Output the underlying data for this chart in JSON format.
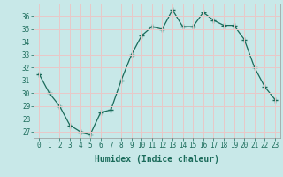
{
  "x": [
    0,
    1,
    2,
    3,
    4,
    5,
    6,
    7,
    8,
    9,
    10,
    11,
    12,
    13,
    14,
    15,
    16,
    17,
    18,
    19,
    20,
    21,
    22,
    23
  ],
  "y": [
    31.5,
    30.0,
    29.0,
    27.5,
    27.0,
    26.8,
    28.5,
    28.7,
    31.0,
    33.0,
    34.5,
    35.2,
    35.0,
    36.5,
    35.2,
    35.2,
    36.3,
    35.7,
    35.3,
    35.3,
    34.2,
    32.0,
    30.5,
    29.5
  ],
  "line_color": "#1a6b5a",
  "marker": "+",
  "marker_size": 4,
  "marker_lw": 1.0,
  "bg_color": "#c8e8e8",
  "grid_color": "#e8c8c8",
  "xlabel": "Humidex (Indice chaleur)",
  "xlim": [
    -0.5,
    23.5
  ],
  "ylim": [
    26.5,
    37.0
  ],
  "yticks": [
    27,
    28,
    29,
    30,
    31,
    32,
    33,
    34,
    35,
    36
  ],
  "xticks": [
    0,
    1,
    2,
    3,
    4,
    5,
    6,
    7,
    8,
    9,
    10,
    11,
    12,
    13,
    14,
    15,
    16,
    17,
    18,
    19,
    20,
    21,
    22,
    23
  ],
  "tick_fontsize": 5.5,
  "label_fontsize": 7,
  "tick_color": "#1a6b5a"
}
